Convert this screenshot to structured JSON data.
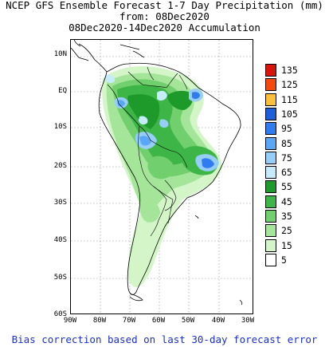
{
  "header": {
    "line1": "NCEP GFS Ensemble Forecast 1-7 Day Precipitation (mm)",
    "line2": "from: 08Dec2020",
    "line3": "08Dec2020-14Dec2020 Accumulation"
  },
  "axes": {
    "lat_labels": [
      "10N",
      "EQ",
      "10S",
      "20S",
      "30S",
      "40S",
      "50S",
      "60S"
    ],
    "lon_labels": [
      "90W",
      "80W",
      "70W",
      "60W",
      "50W",
      "40W",
      "30W"
    ]
  },
  "legend": {
    "items": [
      {
        "label": "135",
        "color": "#d9140b"
      },
      {
        "label": "125",
        "color": "#f5480f"
      },
      {
        "label": "115",
        "color": "#fbbf3c"
      },
      {
        "label": "105",
        "color": "#1c5fd8"
      },
      {
        "label": "95",
        "color": "#2f7cf0"
      },
      {
        "label": "85",
        "color": "#5aa7f7"
      },
      {
        "label": "75",
        "color": "#96cef8"
      },
      {
        "label": "65",
        "color": "#c6ecfb"
      },
      {
        "label": "55",
        "color": "#1e9a2a"
      },
      {
        "label": "45",
        "color": "#3eb547"
      },
      {
        "label": "35",
        "color": "#71d06d"
      },
      {
        "label": "25",
        "color": "#a4e59a"
      },
      {
        "label": "15",
        "color": "#d3f5c8"
      },
      {
        "label": "5",
        "color": "#ffffff"
      }
    ]
  },
  "footer": {
    "note": "Bias correction based on last 30-day forecast error"
  }
}
